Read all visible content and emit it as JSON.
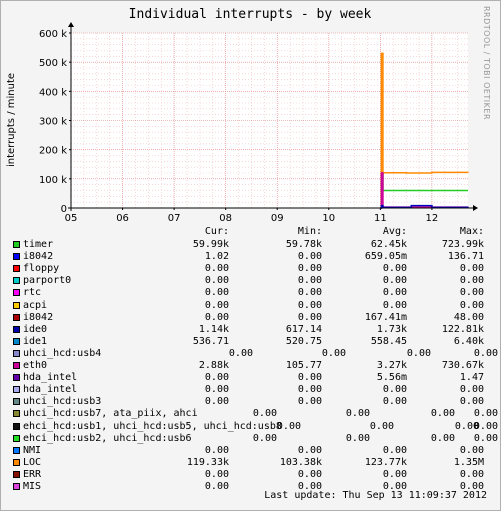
{
  "chart_data": {
    "type": "line",
    "title": "Individual interrupts - by week",
    "ylabel": "interrupts / minute",
    "side_label": "RRDTOOL / TOBI OETIKER",
    "ylim": [
      0,
      600000
    ],
    "y_ticks": [
      "0",
      "100 k",
      "200 k",
      "300 k",
      "400 k",
      "500 k",
      "600 k"
    ],
    "y_tick_values": [
      0,
      100000,
      200000,
      300000,
      400000,
      500000,
      600000
    ],
    "x_ticks": [
      "05",
      "06",
      "07",
      "08",
      "09",
      "10",
      "11",
      "12"
    ],
    "x_tick_days": [
      5,
      6,
      7,
      8,
      9,
      10,
      11,
      12
    ],
    "xlim": [
      5,
      12.7
    ],
    "grid": true,
    "series": [
      {
        "name": "timer",
        "color": "#22cc22",
        "points": [
          [
            11.0,
            0
          ],
          [
            11.02,
            120000
          ],
          [
            11.05,
            60000
          ],
          [
            12.7,
            60000
          ]
        ]
      },
      {
        "name": "LOC",
        "color": "#ff8800",
        "points": [
          [
            11.0,
            0
          ],
          [
            11.02,
            530000
          ],
          [
            11.05,
            121000
          ],
          [
            11.5,
            120000
          ],
          [
            12.0,
            122000
          ],
          [
            12.7,
            121000
          ]
        ]
      },
      {
        "name": "eth0",
        "color": "#cc0099",
        "points": [
          [
            11.0,
            0
          ],
          [
            11.02,
            120000
          ],
          [
            11.05,
            3000
          ],
          [
            12.7,
            3000
          ]
        ]
      },
      {
        "name": "ide0",
        "color": "#0000bb",
        "points": [
          [
            11.0,
            0
          ],
          [
            11.02,
            8000
          ],
          [
            11.05,
            2000
          ],
          [
            11.6,
            8000
          ],
          [
            12.0,
            2000
          ],
          [
            12.7,
            1500
          ]
        ]
      }
    ]
  },
  "legend_header": {
    "cur": "Cur:",
    "min": "Min:",
    "avg": "Avg:",
    "max": "Max:"
  },
  "legend": [
    {
      "name": "timer",
      "color": "#22cc22",
      "cur": "59.99k",
      "min": "59.78k",
      "avg": "62.45k",
      "max": "723.99k"
    },
    {
      "name": "i8042",
      "color": "#0000ff",
      "cur": "1.02",
      "min": "0.00",
      "avg": "659.05m",
      "max": "136.71"
    },
    {
      "name": "floppy",
      "color": "#ff0000",
      "cur": "0.00",
      "min": "0.00",
      "avg": "0.00",
      "max": "0.00"
    },
    {
      "name": "parport0",
      "color": "#00cccc",
      "cur": "0.00",
      "min": "0.00",
      "avg": "0.00",
      "max": "0.00"
    },
    {
      "name": "rtc",
      "color": "#ff00ff",
      "cur": "0.00",
      "min": "0.00",
      "avg": "0.00",
      "max": "0.00"
    },
    {
      "name": "acpi",
      "color": "#ffcc00",
      "cur": "0.00",
      "min": "0.00",
      "avg": "0.00",
      "max": "0.00"
    },
    {
      "name": "i8042",
      "color": "#aa0000",
      "cur": "0.00",
      "min": "0.00",
      "avg": "167.41m",
      "max": "48.00"
    },
    {
      "name": "ide0",
      "color": "#0000aa",
      "cur": "1.14k",
      "min": "617.14",
      "avg": "1.73k",
      "max": "122.81k"
    },
    {
      "name": "ide1",
      "color": "#0088cc",
      "cur": "536.71",
      "min": "520.75",
      "avg": "558.45",
      "max": "6.40k"
    },
    {
      "name": "uhci_hcd:usb4",
      "color": "#8888cc",
      "cur": "0.00",
      "min": "0.00",
      "avg": "0.00",
      "max": "0.00"
    },
    {
      "name": "eth0",
      "color": "#cc0099",
      "cur": "2.88k",
      "min": "105.77",
      "avg": "3.27k",
      "max": "730.67k"
    },
    {
      "name": "hda_intel",
      "color": "#6600aa",
      "cur": "0.00",
      "min": "0.00",
      "avg": "5.56m",
      "max": "1.47"
    },
    {
      "name": "hda_intel",
      "color": "#aaaaee",
      "cur": "0.00",
      "min": "0.00",
      "avg": "0.00",
      "max": "0.00"
    },
    {
      "name": "uhci_hcd:usb3",
      "color": "#668888",
      "cur": "0.00",
      "min": "0.00",
      "avg": "0.00",
      "max": "0.00"
    },
    {
      "name": "uhci_hcd:usb7, ata_piix, ahci",
      "color": "#888833",
      "cur": "0.00",
      "min": "0.00",
      "avg": "0.00",
      "max": "0.00"
    },
    {
      "name": "ehci_hcd:usb1, uhci_hcd:usb5, uhci_hcd:usb8",
      "color": "#111111",
      "cur": "0.00",
      "min": "0.00",
      "avg": "0.00",
      "max": "0.00"
    },
    {
      "name": "ehci_hcd:usb2, uhci_hcd:usb6",
      "color": "#22dd22",
      "cur": "0.00",
      "min": "0.00",
      "avg": "0.00",
      "max": "0.00"
    },
    {
      "name": "NMI",
      "color": "#0077ff",
      "cur": "0.00",
      "min": "0.00",
      "avg": "0.00",
      "max": "0.00"
    },
    {
      "name": "LOC",
      "color": "#ff8800",
      "cur": "119.33k",
      "min": "103.38k",
      "avg": "123.77k",
      "max": "1.35M"
    },
    {
      "name": "ERR",
      "color": "#881100",
      "cur": "0.00",
      "min": "0.00",
      "avg": "0.00",
      "max": "0.00"
    },
    {
      "name": "MIS",
      "color": "#dd44dd",
      "cur": "0.00",
      "min": "0.00",
      "avg": "0.00",
      "max": "0.00"
    }
  ],
  "footer": "Last update: Thu Sep 13 11:09:37 2012"
}
